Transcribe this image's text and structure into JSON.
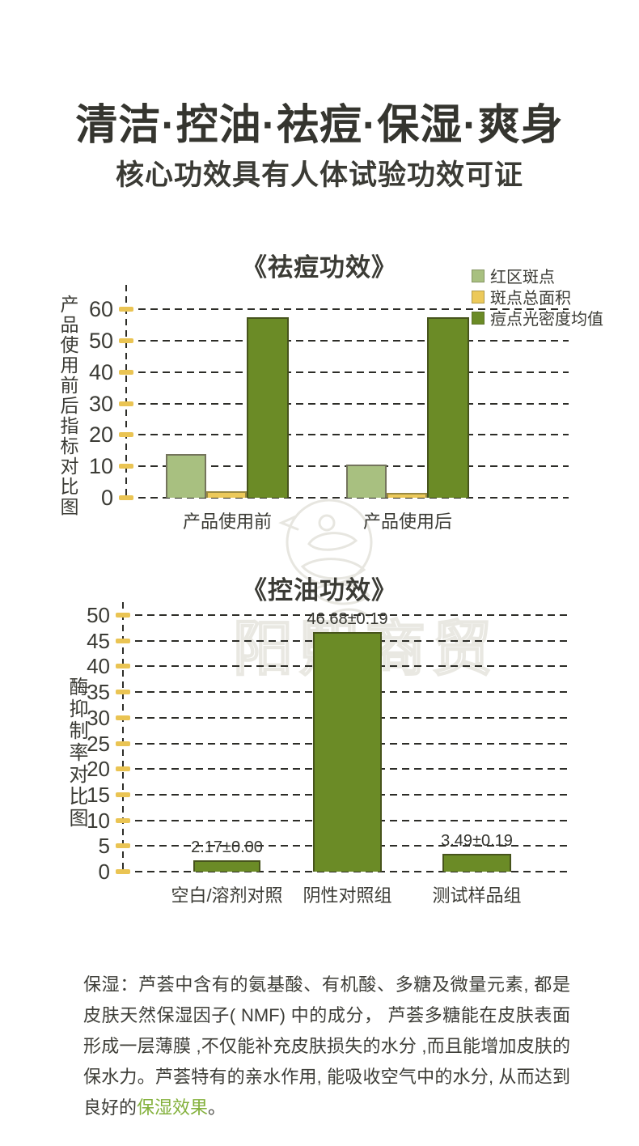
{
  "page": {
    "title": "清洁·控油·祛痘·保湿·爽身",
    "subtitle": "核心功效具有人体试验功效可证"
  },
  "colors": {
    "dark_green": "#6b8b26",
    "light_green": "#a8c080",
    "yellow": "#ecc95a",
    "tick_yellow": "#eac453",
    "highlight_green": "#84b13d"
  },
  "watermark": {
    "text": "阳熙商贸"
  },
  "chart_data": [
    {
      "type": "bar",
      "title": "《祛痘功效》",
      "ylabel": "产品使用前后指标对比图",
      "ylim": [
        0,
        60
      ],
      "ytick_step": 10,
      "grid": true,
      "legend_position": "top-right",
      "categories": [
        "产品使用前",
        "产品使用后"
      ],
      "series": [
        {
          "name": "红区斑点",
          "color": "#a8c080",
          "border": "#74745c",
          "values": [
            14.0,
            10.5
          ]
        },
        {
          "name": "斑点总面积",
          "color": "#ecc95a",
          "border": "#9a8a42",
          "values": [
            2.0,
            1.5
          ]
        },
        {
          "name": "痘点光密度均值",
          "color": "#6b8b26",
          "border": "#47541c",
          "values": [
            57.4,
            57.4
          ]
        }
      ]
    },
    {
      "type": "bar",
      "title": "《控油功效》",
      "ylabel": "酶抑制率对比图",
      "ylim": [
        0,
        50
      ],
      "ytick_step": 5,
      "grid": true,
      "categories": [
        "空白/溶剂对照",
        "阴性对照组",
        "测试样品组"
      ],
      "values": [
        2.17,
        46.68,
        3.49
      ],
      "value_labels": [
        "2.17±0.00",
        "46.68±0.19",
        "3.49±0.19"
      ],
      "bar_color": "#6b8b26",
      "bar_border": "#47541c"
    }
  ],
  "paragraph": {
    "label": "保湿：",
    "text": "芦荟中含有的氨基酸、有机酸、多糖及微量元素, 都是皮肤天然保湿因子( NMF) 中的成分， 芦荟多糖能在皮肤表面形成一层薄膜 ,不仅能补充皮肤损失的水分 ,而且能增加皮肤的保水力。芦荟特有的亲水作用, 能吸收空气中的水分, 从而达到良好的",
    "highlight": "保湿效果",
    "suffix": "。"
  }
}
